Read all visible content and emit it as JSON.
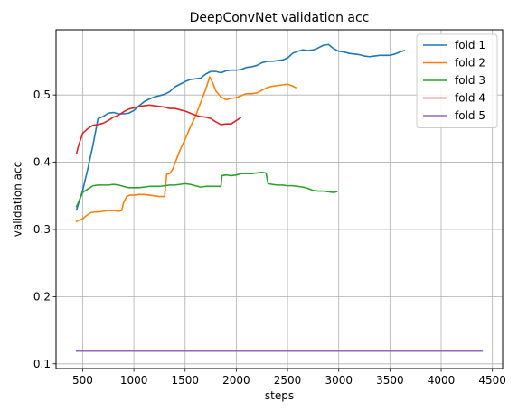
{
  "chart_data": {
    "type": "line",
    "title": "DeepConvNet validation acc",
    "xlabel": "steps",
    "ylabel": "validation acc",
    "xlim": [
      240,
      4600
    ],
    "ylim": [
      0.093,
      0.597
    ],
    "xticks": [
      500,
      1000,
      1500,
      2000,
      2500,
      3000,
      3500,
      4000,
      4500
    ],
    "xtick_labels": [
      "500",
      "1000",
      "1500",
      "2000",
      "2500",
      "3000",
      "3500",
      "4000",
      "4500"
    ],
    "yticks": [
      0.1,
      0.2,
      0.3,
      0.4,
      0.5
    ],
    "ytick_labels": [
      "0.1",
      "0.2",
      "0.3",
      "0.4",
      "0.5"
    ],
    "grid": true,
    "legend_position": "top-right",
    "series": [
      {
        "name": "fold 1",
        "color": "#1f77b4",
        "x": [
          440,
          500,
          550,
          600,
          650,
          700,
          750,
          800,
          850,
          900,
          950,
          1000,
          1050,
          1100,
          1150,
          1200,
          1250,
          1300,
          1350,
          1400,
          1450,
          1500,
          1550,
          1600,
          1650,
          1700,
          1750,
          1800,
          1850,
          1900,
          1950,
          2000,
          2050,
          2100,
          2150,
          2200,
          2250,
          2300,
          2350,
          2400,
          2450,
          2500,
          2550,
          2600,
          2650,
          2700,
          2750,
          2800,
          2850,
          2900,
          2950,
          3000,
          3050,
          3100,
          3150,
          3200,
          3250,
          3300,
          3350,
          3400,
          3450,
          3500,
          3550,
          3600,
          3640
        ],
        "y": [
          0.329,
          0.358,
          0.39,
          0.425,
          0.465,
          0.468,
          0.473,
          0.474,
          0.472,
          0.472,
          0.473,
          0.477,
          0.484,
          0.49,
          0.494,
          0.497,
          0.499,
          0.501,
          0.505,
          0.512,
          0.516,
          0.52,
          0.523,
          0.524,
          0.525,
          0.531,
          0.535,
          0.535,
          0.533,
          0.536,
          0.537,
          0.537,
          0.538,
          0.541,
          0.542,
          0.544,
          0.548,
          0.55,
          0.55,
          0.551,
          0.552,
          0.555,
          0.562,
          0.565,
          0.567,
          0.566,
          0.567,
          0.57,
          0.574,
          0.575,
          0.569,
          0.565,
          0.564,
          0.562,
          0.561,
          0.56,
          0.558,
          0.557,
          0.558,
          0.559,
          0.559,
          0.559,
          0.561,
          0.564,
          0.566
        ]
      },
      {
        "name": "fold 2",
        "color": "#ff7f0e",
        "x": [
          440,
          470,
          500,
          540,
          580,
          620,
          660,
          700,
          750,
          800,
          850,
          880,
          900,
          930,
          960,
          1000,
          1050,
          1100,
          1150,
          1200,
          1250,
          1300,
          1320,
          1350,
          1380,
          1400,
          1450,
          1500,
          1550,
          1600,
          1650,
          1700,
          1740,
          1770,
          1800,
          1850,
          1900,
          1950,
          2000,
          2050,
          2100,
          2150,
          2200,
          2250,
          2300,
          2350,
          2400,
          2450,
          2500,
          2540,
          2580
        ],
        "y": [
          0.312,
          0.314,
          0.316,
          0.321,
          0.325,
          0.326,
          0.326,
          0.327,
          0.328,
          0.328,
          0.327,
          0.328,
          0.34,
          0.349,
          0.351,
          0.351,
          0.352,
          0.352,
          0.351,
          0.35,
          0.349,
          0.349,
          0.382,
          0.383,
          0.39,
          0.398,
          0.418,
          0.434,
          0.452,
          0.468,
          0.488,
          0.508,
          0.527,
          0.518,
          0.506,
          0.497,
          0.493,
          0.495,
          0.496,
          0.499,
          0.502,
          0.502,
          0.503,
          0.507,
          0.511,
          0.513,
          0.514,
          0.515,
          0.516,
          0.514,
          0.511
        ]
      },
      {
        "name": "fold 3",
        "color": "#2ca02c",
        "x": [
          440,
          500,
          550,
          600,
          650,
          700,
          750,
          800,
          850,
          900,
          950,
          1000,
          1050,
          1100,
          1150,
          1200,
          1250,
          1300,
          1350,
          1400,
          1450,
          1500,
          1550,
          1600,
          1650,
          1700,
          1750,
          1800,
          1850,
          1860,
          1900,
          1950,
          2000,
          2050,
          2100,
          2150,
          2200,
          2250,
          2290,
          2310,
          2350,
          2400,
          2450,
          2500,
          2550,
          2600,
          2650,
          2700,
          2750,
          2800,
          2850,
          2900,
          2950,
          2980
        ],
        "y": [
          0.334,
          0.355,
          0.36,
          0.365,
          0.366,
          0.366,
          0.366,
          0.367,
          0.366,
          0.364,
          0.362,
          0.362,
          0.362,
          0.363,
          0.364,
          0.364,
          0.364,
          0.365,
          0.366,
          0.366,
          0.367,
          0.368,
          0.367,
          0.365,
          0.363,
          0.364,
          0.364,
          0.364,
          0.364,
          0.38,
          0.381,
          0.38,
          0.381,
          0.383,
          0.383,
          0.383,
          0.384,
          0.385,
          0.384,
          0.368,
          0.367,
          0.366,
          0.366,
          0.365,
          0.365,
          0.364,
          0.363,
          0.361,
          0.358,
          0.357,
          0.357,
          0.356,
          0.355,
          0.356
        ]
      },
      {
        "name": "fold 4",
        "color": "#d62728",
        "x": [
          440,
          460,
          500,
          550,
          600,
          650,
          700,
          750,
          800,
          850,
          900,
          950,
          1000,
          1050,
          1100,
          1150,
          1200,
          1250,
          1300,
          1350,
          1400,
          1450,
          1500,
          1550,
          1600,
          1650,
          1700,
          1750,
          1800,
          1850,
          1900,
          1950,
          2000,
          2040
        ],
        "y": [
          0.413,
          0.425,
          0.443,
          0.45,
          0.455,
          0.456,
          0.458,
          0.462,
          0.467,
          0.47,
          0.475,
          0.479,
          0.481,
          0.483,
          0.484,
          0.485,
          0.484,
          0.483,
          0.482,
          0.48,
          0.48,
          0.478,
          0.476,
          0.473,
          0.47,
          0.468,
          0.467,
          0.465,
          0.46,
          0.456,
          0.457,
          0.457,
          0.462,
          0.466
        ]
      },
      {
        "name": "fold 5",
        "color": "#9467bd",
        "x": [
          440,
          4400
        ],
        "y": [
          0.119,
          0.119
        ]
      }
    ]
  }
}
